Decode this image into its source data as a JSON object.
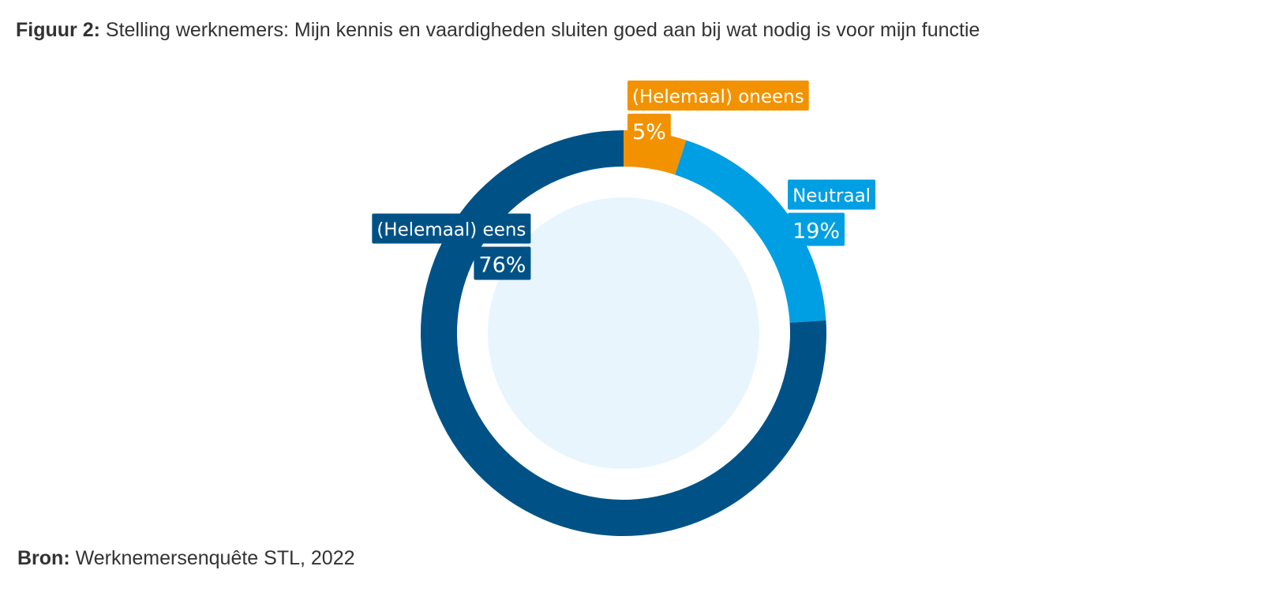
{
  "figure": {
    "title_prefix": "Figuur 2:",
    "title_text": "Stelling werknemers: Mijn kennis en vaardigheden sluiten goed aan bij wat nodig is voor mijn functie"
  },
  "source": {
    "prefix": "Bron:",
    "text": "Werknemersenquête STL, 2022"
  },
  "chart_data": {
    "type": "pie",
    "variant": "donut",
    "title": "Stelling werknemers: Mijn kennis en vaardigheden sluiten goed aan bij wat nodig is voor mijn functie",
    "slices": [
      {
        "label": "(Helemaal) oneens",
        "value": 5,
        "value_label": "5%",
        "color": "#f29200"
      },
      {
        "label": "Neutraal",
        "value": 19,
        "value_label": "19%",
        "color": "#009fe3"
      },
      {
        "label": "(Helemaal) eens",
        "value": 76,
        "value_label": "76%",
        "color": "#005286"
      }
    ],
    "start_angle_deg": 0,
    "direction": "clockwise",
    "center_fill": "#e8f5fd"
  }
}
